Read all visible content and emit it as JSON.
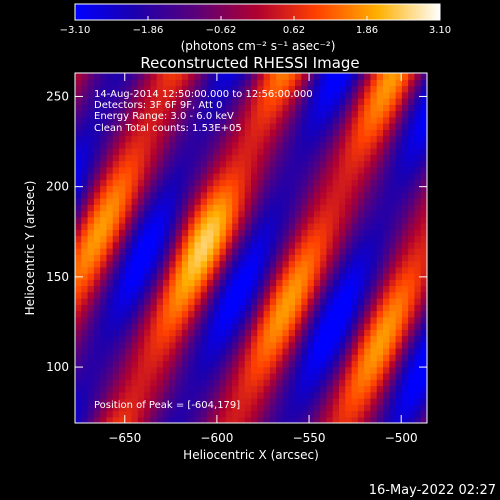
{
  "chart_data": {
    "type": "heatmap",
    "title": "Reconstructed RHESSI Image",
    "xlabel": "Heliocentric X (arcsec)",
    "ylabel": "Heliocentric Y (arcsec)",
    "xlim": [
      -677,
      -486
    ],
    "ylim": [
      69,
      263
    ],
    "xticks": [
      -650,
      -600,
      -550,
      -500
    ],
    "yticks": [
      100,
      150,
      200,
      250
    ],
    "colorbar": {
      "ticks": [
        "-3.10",
        "-1.86",
        "-0.62",
        "0.62",
        "1.86",
        "3.10"
      ],
      "range": [
        -3.1,
        3.1
      ],
      "units": "(photons cm⁻² s⁻¹ asec⁻²)"
    },
    "annotations": [
      "14-Aug-2014 12:50:00.000 to 12:56:00.000",
      "Detectors: 3F 6F 9F, Att 0",
      "Energy Range: 3.0 - 6.0 keV",
      "Clean    Total counts: 1.53E+05"
    ],
    "peak_label": "Position of Peak = [-604,179]",
    "peak": [
      -604,
      179
    ],
    "band_centers_x_at_y": {
      "y_ref": 170,
      "x": [
        -666,
        -606,
        -546,
        -486
      ]
    },
    "band_slope_dx_per_dy": 0.45,
    "band_spacing_x": 60
  },
  "footer": {
    "date": "16-May-2022 02:27"
  }
}
